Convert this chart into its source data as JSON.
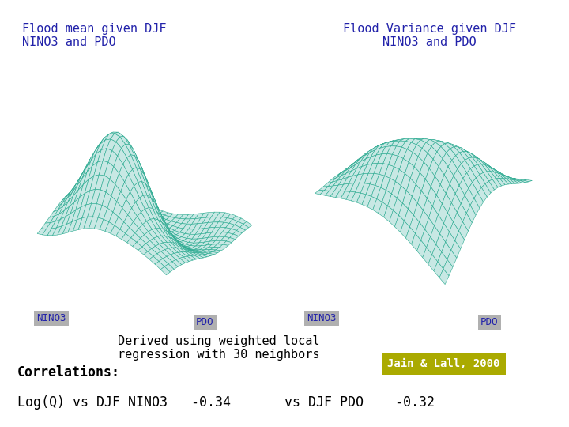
{
  "title_left": "Flood mean given DJF\nNINO3 and PDO",
  "title_right": "Flood Variance given DJF\nNINO3 and PDO",
  "title_bg_color": "#b0b0b0",
  "title_text_color": "#2222aa",
  "surface_color": "#c8e8e4",
  "edge_color": "#2aaa90",
  "surface_alpha": 1.0,
  "xlabel_left": "NINO3",
  "ylabel_left": "PDO",
  "xlabel_right": "NINO3",
  "ylabel_right": "PDO",
  "label_bg_color": "#b0b0b0",
  "label_text_color": "#2222aa",
  "annotation_text": "Derived using weighted local\nregression with 30 neighbors",
  "annotation_color": "#000000",
  "correlations_label": "Correlations:",
  "corr_text1": "Log(Q) vs DJF NINO3   -0.34",
  "corr_text2": "vs DJF PDO    -0.32",
  "jain_label": "Jain & Lall, 2000",
  "jain_bg_color": "#aaaa00",
  "jain_text_color": "#ffffff",
  "bg_color": "#ffffff"
}
